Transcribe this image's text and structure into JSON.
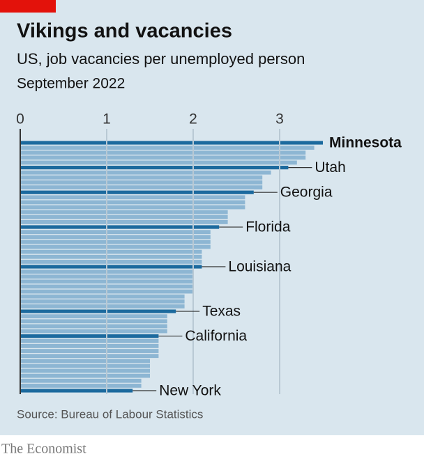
{
  "chart_data": {
    "type": "bar",
    "orientation": "horizontal",
    "title": "Vikings and vacancies",
    "subtitle": "US, job vacancies per unemployed person",
    "date": "September 2022",
    "source": "Source: Bureau of Labour Statistics",
    "brand": "The Economist",
    "categories": [
      "Minnesota",
      null,
      null,
      null,
      null,
      "Utah",
      null,
      null,
      null,
      null,
      "Georgia",
      null,
      null,
      null,
      null,
      null,
      null,
      "Florida",
      null,
      null,
      null,
      null,
      null,
      null,
      null,
      "Louisiana",
      null,
      null,
      null,
      null,
      null,
      null,
      null,
      null,
      "Texas",
      null,
      null,
      null,
      null,
      "California",
      null,
      null,
      null,
      null,
      null,
      null,
      null,
      null,
      null,
      null,
      "New York"
    ],
    "values": [
      3.5,
      3.4,
      3.3,
      3.3,
      3.2,
      3.1,
      2.9,
      2.8,
      2.8,
      2.8,
      2.7,
      2.6,
      2.6,
      2.6,
      2.4,
      2.4,
      2.4,
      2.3,
      2.2,
      2.2,
      2.2,
      2.2,
      2.1,
      2.1,
      2.1,
      2.1,
      2.0,
      2.0,
      2.0,
      2.0,
      2.0,
      1.9,
      1.9,
      1.9,
      1.8,
      1.7,
      1.7,
      1.7,
      1.7,
      1.6,
      1.6,
      1.6,
      1.6,
      1.6,
      1.5,
      1.5,
      1.5,
      1.5,
      1.4,
      1.4,
      1.3
    ],
    "color": "#8db6d3",
    "highlight_color": "#1c6a9e",
    "xlim": [
      0,
      3.5
    ],
    "xticks": [
      0,
      1,
      2,
      3
    ],
    "grid": true
  }
}
